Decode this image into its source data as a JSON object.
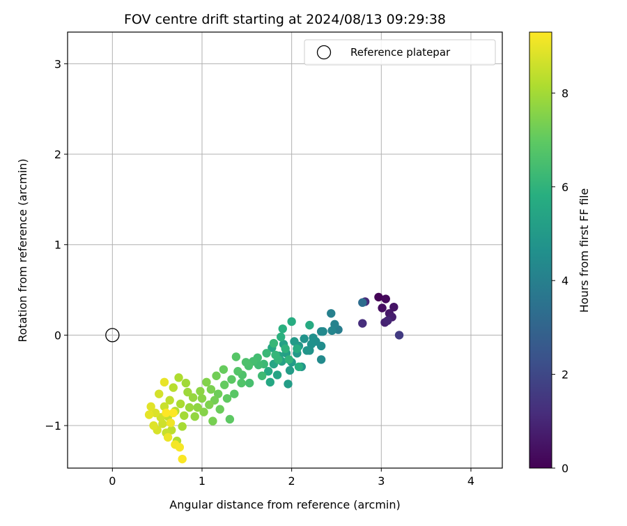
{
  "chart_data": {
    "type": "scatter",
    "title": "FOV centre drift starting at 2024/08/13 09:29:38",
    "xlabel": "Angular distance from reference (arcmin)",
    "ylabel": "Rotation from reference (arcmin)",
    "xlim": [
      -0.5,
      4.35
    ],
    "ylim": [
      -1.47,
      3.35
    ],
    "xticks": [
      0,
      1,
      2,
      3,
      4
    ],
    "yticks": [
      -1,
      0,
      1,
      2,
      3
    ],
    "xtick_labels": [
      "0",
      "1",
      "2",
      "3",
      "4"
    ],
    "ytick_labels": [
      "−1",
      "0",
      "1",
      "2",
      "3"
    ],
    "grid": true,
    "legend": {
      "placement": "top-right",
      "entries": [
        "Reference platepar"
      ]
    },
    "colorbar": {
      "label": "Hours from first FF file",
      "colormap": "viridis",
      "range": [
        0,
        9.3
      ],
      "ticks": [
        0,
        2,
        4,
        6,
        8
      ],
      "tick_labels": [
        "0",
        "2",
        "4",
        "6",
        "8"
      ]
    },
    "reference_point": {
      "x": 0,
      "y": 0,
      "label": "Reference platepar"
    },
    "point_fields": [
      "x",
      "y",
      "hours"
    ],
    "points": [
      [
        2.97,
        0.42,
        0.05
      ],
      [
        3.05,
        0.4,
        0.2
      ],
      [
        3.01,
        0.3,
        0.35
      ],
      [
        3.14,
        0.31,
        0.5
      ],
      [
        3.09,
        0.24,
        0.6
      ],
      [
        3.12,
        0.2,
        0.75
      ],
      [
        3.04,
        0.14,
        0.85
      ],
      [
        3.07,
        0.16,
        0.95
      ],
      [
        2.82,
        0.37,
        1.1
      ],
      [
        2.79,
        0.13,
        1.2
      ],
      [
        3.2,
        0.0,
        1.6
      ],
      [
        2.79,
        0.36,
        3.3
      ],
      [
        2.44,
        0.24,
        4.0
      ],
      [
        2.52,
        0.06,
        3.9
      ],
      [
        2.48,
        0.12,
        4.1
      ],
      [
        2.45,
        0.05,
        4.2
      ],
      [
        2.33,
        0.04,
        4.3
      ],
      [
        2.35,
        0.04,
        4.35
      ],
      [
        2.33,
        -0.27,
        4.4
      ],
      [
        2.33,
        -0.12,
        4.5
      ],
      [
        2.27,
        -0.07,
        4.55
      ],
      [
        2.24,
        -0.03,
        4.6
      ],
      [
        2.22,
        -0.1,
        4.65
      ],
      [
        2.2,
        -0.17,
        4.7
      ],
      [
        2.14,
        -0.04,
        4.75
      ],
      [
        2.17,
        -0.17,
        4.8
      ],
      [
        2.11,
        -0.35,
        4.85
      ],
      [
        2.08,
        -0.12,
        4.9
      ],
      [
        2.06,
        -0.2,
        4.95
      ],
      [
        2.03,
        -0.07,
        5.0
      ],
      [
        2.0,
        -0.3,
        5.05
      ],
      [
        1.98,
        -0.39,
        5.1
      ],
      [
        1.96,
        -0.54,
        5.15
      ],
      [
        1.94,
        -0.2,
        5.2
      ],
      [
        1.91,
        -0.1,
        5.25
      ],
      [
        1.89,
        -0.29,
        5.3
      ],
      [
        1.86,
        -0.23,
        5.35
      ],
      [
        1.84,
        -0.44,
        5.4
      ],
      [
        1.8,
        -0.32,
        5.45
      ],
      [
        1.78,
        -0.14,
        5.5
      ],
      [
        1.76,
        -0.52,
        5.55
      ],
      [
        1.74,
        -0.4,
        5.6
      ],
      [
        2.2,
        0.11,
        5.65
      ],
      [
        2.06,
        -0.15,
        5.7
      ],
      [
        2.0,
        0.15,
        5.75
      ],
      [
        2.08,
        -0.35,
        5.8
      ],
      [
        1.9,
        0.07,
        5.85
      ],
      [
        1.88,
        -0.02,
        5.9
      ],
      [
        1.93,
        -0.15,
        5.95
      ],
      [
        1.97,
        -0.27,
        6.0
      ],
      [
        1.85,
        -0.27,
        6.05
      ],
      [
        1.82,
        -0.22,
        6.1
      ],
      [
        1.8,
        -0.09,
        6.15
      ],
      [
        1.72,
        -0.2,
        6.2
      ],
      [
        1.69,
        -0.32,
        6.25
      ],
      [
        1.67,
        -0.45,
        6.3
      ],
      [
        1.63,
        -0.33,
        6.35
      ],
      [
        1.62,
        -0.25,
        6.4
      ],
      [
        1.57,
        -0.29,
        6.45
      ],
      [
        1.53,
        -0.53,
        6.5
      ],
      [
        1.52,
        -0.34,
        6.55
      ],
      [
        1.49,
        -0.3,
        6.6
      ],
      [
        1.45,
        -0.44,
        6.65
      ],
      [
        1.44,
        -0.53,
        6.7
      ],
      [
        1.4,
        -0.4,
        6.75
      ],
      [
        1.38,
        -0.24,
        6.8
      ],
      [
        1.36,
        -0.65,
        6.85
      ],
      [
        1.33,
        -0.49,
        6.9
      ],
      [
        1.31,
        -0.93,
        6.95
      ],
      [
        1.28,
        -0.7,
        7.0
      ],
      [
        1.25,
        -0.55,
        7.05
      ],
      [
        1.24,
        -0.38,
        7.1
      ],
      [
        1.2,
        -0.82,
        7.15
      ],
      [
        1.18,
        -0.65,
        7.2
      ],
      [
        1.16,
        -0.45,
        7.25
      ],
      [
        1.14,
        -0.72,
        7.3
      ],
      [
        1.12,
        -0.95,
        7.35
      ],
      [
        1.1,
        -0.6,
        7.4
      ],
      [
        1.08,
        -0.77,
        7.45
      ],
      [
        1.05,
        -0.52,
        7.5
      ],
      [
        1.02,
        -0.85,
        7.55
      ],
      [
        1.0,
        -0.7,
        7.6
      ],
      [
        0.98,
        -0.62,
        7.65
      ],
      [
        0.95,
        -0.8,
        7.7
      ],
      [
        0.92,
        -0.9,
        7.75
      ],
      [
        0.9,
        -0.69,
        7.8
      ],
      [
        0.86,
        -0.8,
        7.85
      ],
      [
        0.84,
        -0.63,
        7.9
      ],
      [
        0.82,
        -0.53,
        7.95
      ],
      [
        0.8,
        -0.89,
        8.0
      ],
      [
        0.78,
        -1.01,
        8.05
      ],
      [
        0.76,
        -0.76,
        8.1
      ],
      [
        0.74,
        -0.47,
        8.15
      ],
      [
        0.72,
        -1.17,
        8.2
      ],
      [
        0.7,
        -0.84,
        8.25
      ],
      [
        0.68,
        -0.58,
        8.3
      ],
      [
        0.66,
        -1.05,
        8.35
      ],
      [
        0.64,
        -0.72,
        8.4
      ],
      [
        0.62,
        -0.9,
        8.45
      ],
      [
        0.6,
        -1.08,
        8.5
      ],
      [
        0.58,
        -0.79,
        8.55
      ],
      [
        0.56,
        -0.98,
        8.6
      ],
      [
        0.54,
        -0.91,
        8.65
      ],
      [
        0.52,
        -0.65,
        8.7
      ],
      [
        0.5,
        -1.05,
        8.75
      ],
      [
        0.48,
        -0.86,
        8.8
      ],
      [
        0.46,
        -1.0,
        8.85
      ],
      [
        0.43,
        -0.79,
        8.9
      ],
      [
        0.41,
        -0.88,
        8.95
      ],
      [
        0.58,
        -0.52,
        9.0
      ],
      [
        0.62,
        -1.13,
        9.05
      ],
      [
        0.65,
        -0.97,
        9.1
      ],
      [
        0.7,
        -1.21,
        9.15
      ],
      [
        0.75,
        -1.24,
        9.2
      ],
      [
        0.78,
        -1.37,
        9.25
      ],
      [
        0.68,
        -0.86,
        9.28
      ],
      [
        0.6,
        -0.86,
        9.3
      ]
    ]
  }
}
